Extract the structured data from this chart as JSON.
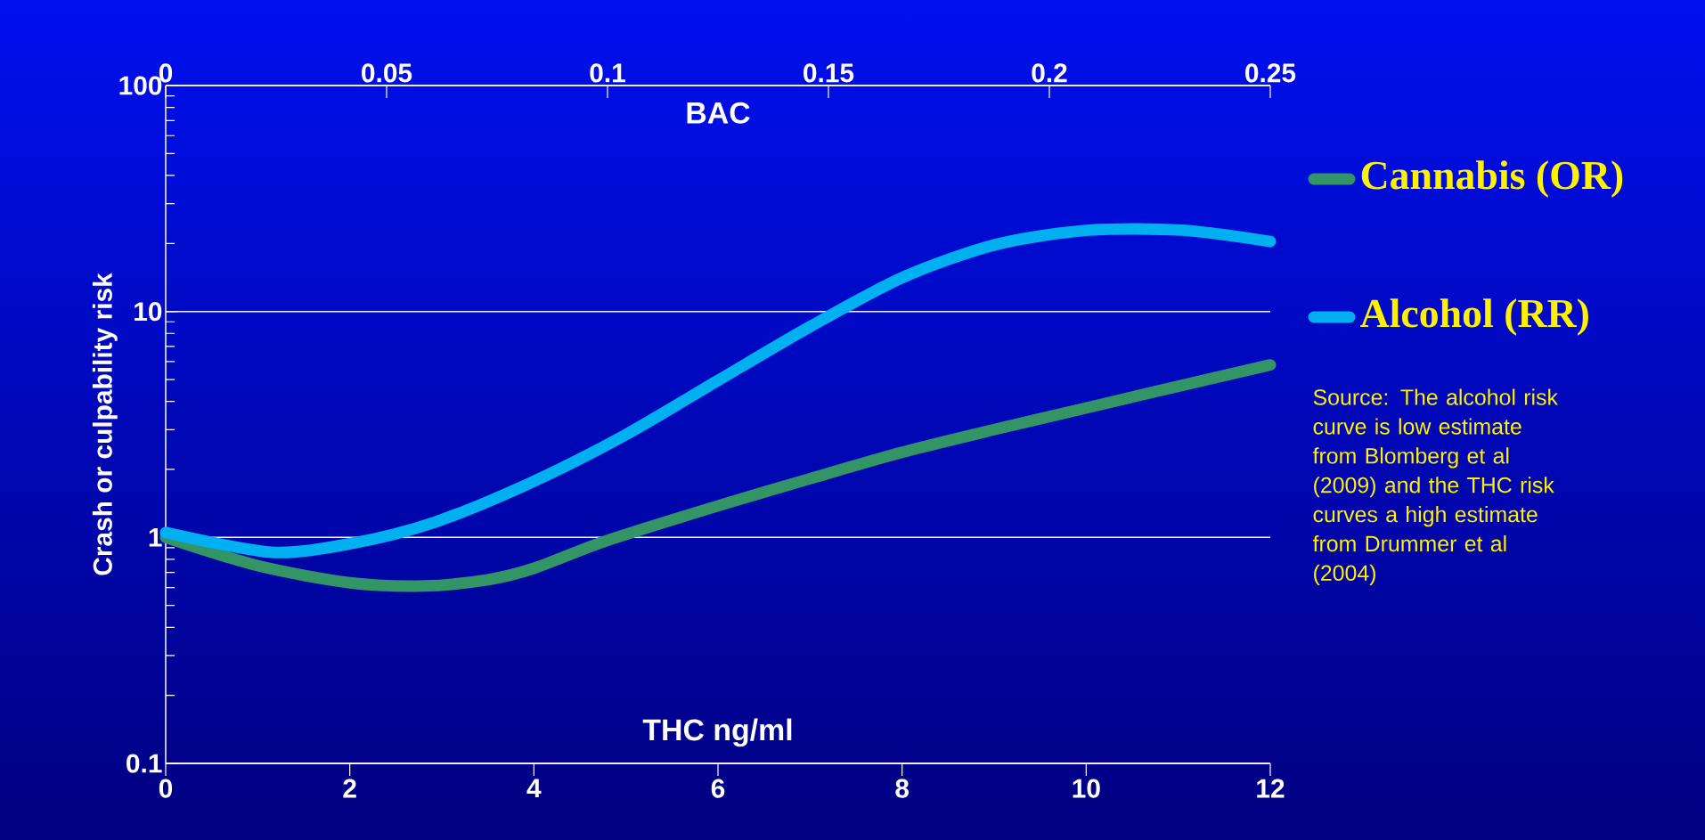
{
  "chart_data": {
    "type": "line",
    "xlabel": "THC ng/ml",
    "x2label": "BAC",
    "ylabel": "Crash or culpability risk",
    "xlim": [
      0,
      12
    ],
    "xticks": [
      0,
      2,
      4,
      6,
      8,
      10,
      12
    ],
    "x2lim": [
      0,
      0.25
    ],
    "x2ticks": [
      0,
      0.05,
      0.1,
      0.15,
      0.2,
      0.25
    ],
    "ylim": [
      0.1,
      100
    ],
    "yticks": [
      0.1,
      1,
      10,
      100
    ],
    "log": "y",
    "grid": "y",
    "legend": "right",
    "series": [
      {
        "name": "Cannabis (OR)",
        "color": "#339466",
        "x": [
          0,
          1,
          2,
          2.8,
          3.5,
          4,
          4.8,
          6,
          7,
          8,
          9,
          10,
          11,
          12
        ],
        "values": [
          1.0,
          0.75,
          0.63,
          0.61,
          0.65,
          0.73,
          0.97,
          1.38,
          1.82,
          2.38,
          3.0,
          3.74,
          4.67,
          5.8
        ]
      },
      {
        "name": "Alcohol (RR)",
        "color": "#00b0f0",
        "axis": "x2",
        "x": [
          0,
          0.024,
          0.042,
          0.061,
          0.083,
          0.104,
          0.125,
          0.146,
          0.167,
          0.188,
          0.209,
          0.23,
          0.25
        ],
        "values": [
          1.05,
          0.86,
          0.94,
          1.17,
          1.76,
          2.84,
          4.95,
          8.6,
          14.2,
          19.8,
          22.9,
          22.9,
          20.4
        ]
      }
    ],
    "annotations": [
      "Source: The alcohol risk curve is low estimate from Blomberg et al (2009) and the THC risk curves a high estimate from Drummer et al (2004)"
    ]
  }
}
